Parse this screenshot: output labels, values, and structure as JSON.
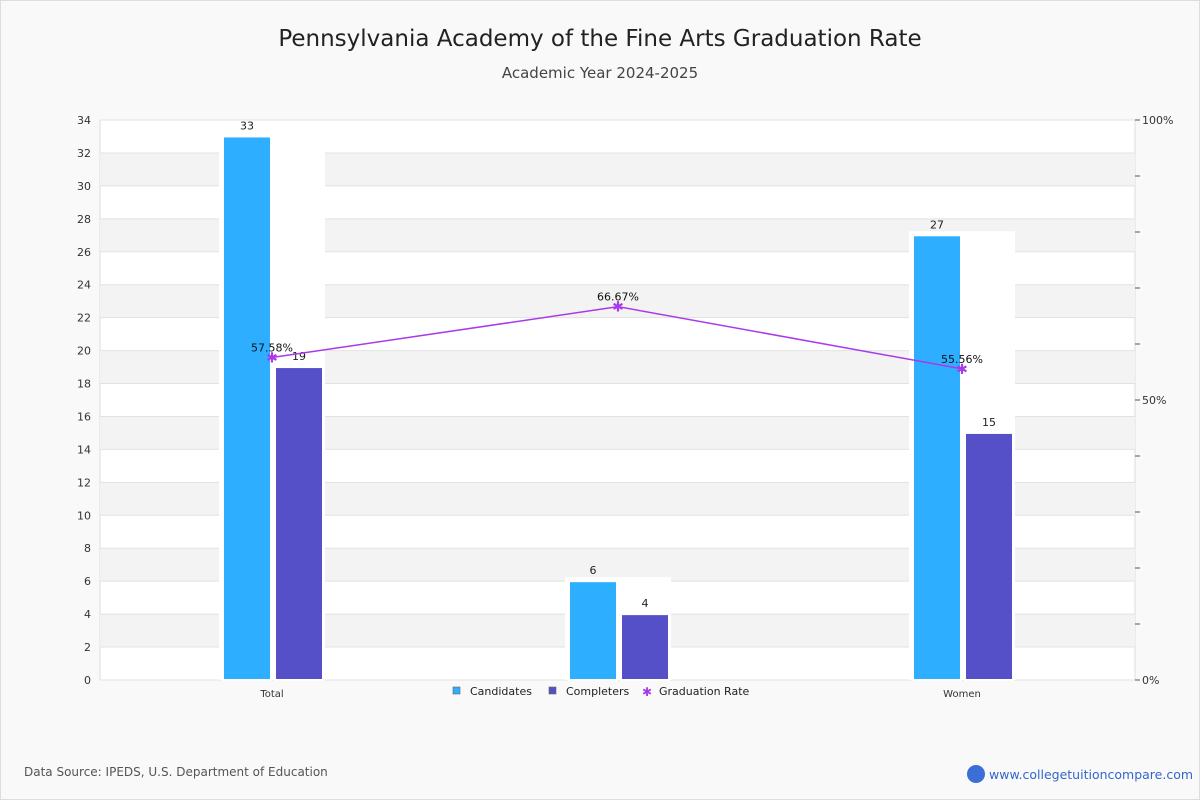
{
  "chart_data": {
    "type": "bar",
    "title": "Pennsylvania Academy of the Fine Arts Graduation Rate",
    "subtitle": "Academic Year 2024-2025",
    "categories": [
      "Total",
      "",
      "Women"
    ],
    "series": [
      {
        "name": "Candidates",
        "type": "bar",
        "color": "#2eaefe",
        "values": [
          33,
          6,
          27
        ]
      },
      {
        "name": "Completers",
        "type": "bar",
        "color": "#5550c8",
        "values": [
          19,
          4,
          15
        ]
      },
      {
        "name": "Graduation Rate",
        "type": "line",
        "axis": "right",
        "color": "#a93ae8",
        "values": [
          57.58,
          66.67,
          55.56
        ],
        "labels": [
          "57.58%",
          "66.67%",
          "55.56%"
        ]
      }
    ],
    "ylim": [
      0,
      34
    ],
    "yticks": [
      0,
      2,
      4,
      6,
      8,
      10,
      12,
      14,
      16,
      18,
      20,
      22,
      24,
      26,
      28,
      30,
      32,
      34
    ],
    "y2lim": [
      0,
      100
    ],
    "y2ticks": [
      "0%",
      "50%",
      "100%"
    ],
    "legend": "bottom-center",
    "grid": true
  },
  "footer": {
    "source": "Data Source: IPEDS, U.S. Department of Education",
    "site": "www.collegetuitioncompare.com",
    "logo": "CTC"
  }
}
